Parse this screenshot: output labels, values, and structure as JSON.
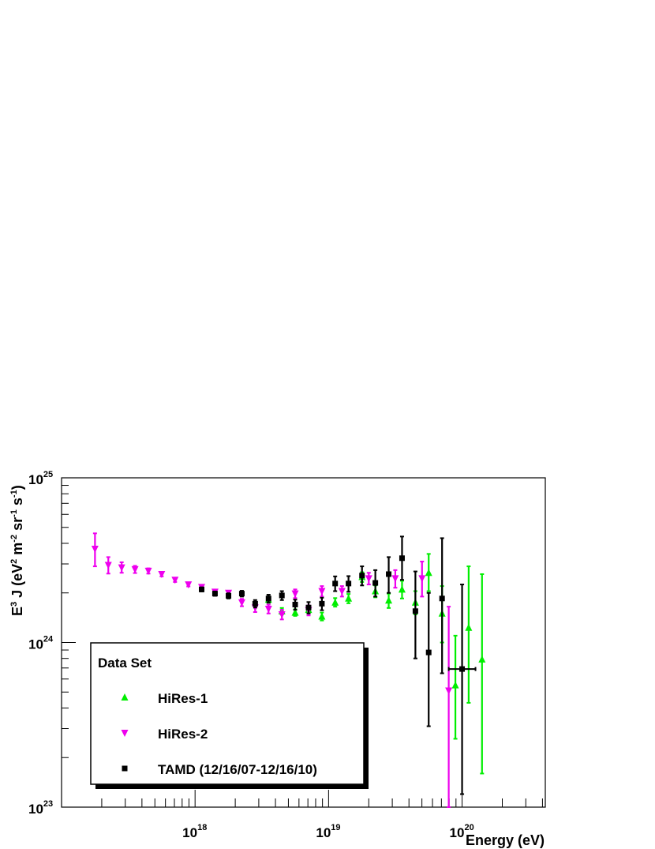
{
  "chart_data": {
    "type": "scatter",
    "xlabel": "Energy (eV)",
    "ylabel": "E³J (eV² m⁻² sr⁻¹ s⁻¹)",
    "ylabel_parts": {
      "a": "E",
      "a_sup": "3",
      "b": " J (eV",
      "b_sup": "2",
      "c": " m",
      "c_sup": "-2",
      "d": " sr",
      "d_sup": "-1",
      "e": " s",
      "e_sup": "-1",
      "f": ")"
    },
    "x_scale": "log",
    "y_scale": "log",
    "xlim": [
      1e+17,
      4.2e+20
    ],
    "ylim": [
      1e+23,
      1e+25
    ],
    "x_ticks": [
      {
        "base": "10",
        "exp": "18",
        "value": 1e+18
      },
      {
        "base": "10",
        "exp": "19",
        "value": 1e+19
      },
      {
        "base": "10",
        "exp": "20",
        "value": 1e+20
      }
    ],
    "y_ticks": [
      {
        "base": "10",
        "exp": "23",
        "value": 1e+23
      },
      {
        "base": "10",
        "exp": "24",
        "value": 1e+24
      },
      {
        "base": "10",
        "exp": "25",
        "value": 1e+25
      }
    ],
    "grid": false,
    "legend": {
      "title": "Data Set",
      "position": "bottom-left"
    },
    "series": [
      {
        "name": "HiRes-1",
        "color": "#00ee00",
        "marker": "triangle-up",
        "points": [
          {
            "x": 3.55e+18,
            "y": 1.82e+24,
            "lo": 1.74e+24,
            "hi": 1.9e+24
          },
          {
            "x": 4.47e+18,
            "y": 1.55e+24,
            "lo": 1.48e+24,
            "hi": 1.62e+24
          },
          {
            "x": 5.62e+18,
            "y": 1.52e+24,
            "lo": 1.45e+24,
            "hi": 1.59e+24
          },
          {
            "x": 7.08e+18,
            "y": 1.58e+24,
            "lo": 1.5e+24,
            "hi": 1.66e+24
          },
          {
            "x": 8.91e+18,
            "y": 1.44e+24,
            "lo": 1.36e+24,
            "hi": 1.52e+24
          },
          {
            "x": 1.12e+19,
            "y": 1.75e+24,
            "lo": 1.65e+24,
            "hi": 1.86e+24
          },
          {
            "x": 1.41e+19,
            "y": 1.85e+24,
            "lo": 1.73e+24,
            "hi": 1.97e+24
          },
          {
            "x": 1.78e+19,
            "y": 2.5e+24,
            "lo": 2.33e+24,
            "hi": 2.67e+24
          },
          {
            "x": 2.24e+19,
            "y": 2.05e+24,
            "lo": 1.88e+24,
            "hi": 2.22e+24
          },
          {
            "x": 2.82e+19,
            "y": 1.8e+24,
            "lo": 1.62e+24,
            "hi": 1.98e+24
          },
          {
            "x": 3.55e+19,
            "y": 2.1e+24,
            "lo": 1.85e+24,
            "hi": 2.37e+24
          },
          {
            "x": 4.47e+19,
            "y": 1.75e+24,
            "lo": 1.48e+24,
            "hi": 2.05e+24
          },
          {
            "x": 5.62e+19,
            "y": 2.65e+24,
            "lo": 2.05e+24,
            "hi": 3.45e+24
          },
          {
            "x": 7.08e+19,
            "y": 1.5e+24,
            "lo": 1e+24,
            "hi": 2.2e+24
          },
          {
            "x": 8.91e+19,
            "y": 5.5e+23,
            "lo": 2.6e+23,
            "hi": 1.1e+24
          },
          {
            "x": 1.12e+20,
            "y": 1.23e+24,
            "lo": 4.3e+23,
            "hi": 2.9e+24
          },
          {
            "x": 1.41e+20,
            "y": 7.9e+23,
            "lo": 1.6e+23,
            "hi": 2.6e+24
          }
        ]
      },
      {
        "name": "HiRes-2",
        "color": "#ee00ee",
        "marker": "triangle-down",
        "points": [
          {
            "x": 1.78e+17,
            "y": 3.7e+24,
            "lo": 2.9e+24,
            "hi": 4.6e+24
          },
          {
            "x": 2.24e+17,
            "y": 2.95e+24,
            "lo": 2.62e+24,
            "hi": 3.3e+24
          },
          {
            "x": 2.82e+17,
            "y": 2.85e+24,
            "lo": 2.65e+24,
            "hi": 3.07e+24
          },
          {
            "x": 3.55e+17,
            "y": 2.78e+24,
            "lo": 2.64e+24,
            "hi": 2.92e+24
          },
          {
            "x": 4.47e+17,
            "y": 2.72e+24,
            "lo": 2.62e+24,
            "hi": 2.82e+24
          },
          {
            "x": 5.62e+17,
            "y": 2.6e+24,
            "lo": 2.52e+24,
            "hi": 2.68e+24
          },
          {
            "x": 7.08e+17,
            "y": 2.4e+24,
            "lo": 2.33e+24,
            "hi": 2.47e+24
          },
          {
            "x": 8.91e+17,
            "y": 2.25e+24,
            "lo": 2.19e+24,
            "hi": 2.31e+24
          },
          {
            "x": 1.12e+18,
            "y": 2.17e+24,
            "lo": 2.11e+24,
            "hi": 2.23e+24
          },
          {
            "x": 1.41e+18,
            "y": 2.03e+24,
            "lo": 1.97e+24,
            "hi": 2.09e+24
          },
          {
            "x": 1.78e+18,
            "y": 2e+24,
            "lo": 1.94e+24,
            "hi": 2.06e+24
          },
          {
            "x": 2.24e+18,
            "y": 1.75e+24,
            "lo": 1.66e+24,
            "hi": 1.84e+24
          },
          {
            "x": 2.82e+18,
            "y": 1.63e+24,
            "lo": 1.53e+24,
            "hi": 1.73e+24
          },
          {
            "x": 3.55e+18,
            "y": 1.6e+24,
            "lo": 1.5e+24,
            "hi": 1.7e+24
          },
          {
            "x": 4.47e+18,
            "y": 1.48e+24,
            "lo": 1.38e+24,
            "hi": 1.58e+24
          },
          {
            "x": 5.62e+18,
            "y": 1.98e+24,
            "lo": 1.86e+24,
            "hi": 2.1e+24
          },
          {
            "x": 7.08e+18,
            "y": 1.57e+24,
            "lo": 1.46e+24,
            "hi": 1.68e+24
          },
          {
            "x": 8.91e+18,
            "y": 2.05e+24,
            "lo": 1.9e+24,
            "hi": 2.2e+24
          },
          {
            "x": 1.26e+19,
            "y": 2.05e+24,
            "lo": 1.9e+24,
            "hi": 2.2e+24
          },
          {
            "x": 2e+19,
            "y": 2.45e+24,
            "lo": 2.25e+24,
            "hi": 2.65e+24
          },
          {
            "x": 3.16e+19,
            "y": 2.45e+24,
            "lo": 2.15e+24,
            "hi": 2.75e+24
          },
          {
            "x": 5.01e+19,
            "y": 2.45e+24,
            "lo": 1.9e+24,
            "hi": 3.1e+24
          },
          {
            "x": 7.94e+19,
            "y": 5.1e+23,
            "lo": 1e+23,
            "hi": 1.65e+24
          }
        ]
      },
      {
        "name": "TAMD (12/16/07-12/16/10)",
        "color": "#000000",
        "marker": "square",
        "points": [
          {
            "x": 1.12e+18,
            "y": 2.1e+24,
            "lo": 2.04e+24,
            "hi": 2.16e+24
          },
          {
            "x": 1.41e+18,
            "y": 1.98e+24,
            "lo": 1.92e+24,
            "hi": 2.04e+24
          },
          {
            "x": 1.78e+18,
            "y": 1.92e+24,
            "lo": 1.85e+24,
            "hi": 1.99e+24
          },
          {
            "x": 2.24e+18,
            "y": 1.98e+24,
            "lo": 1.9e+24,
            "hi": 2.06e+24
          },
          {
            "x": 2.82e+18,
            "y": 1.72e+24,
            "lo": 1.63e+24,
            "hi": 1.81e+24
          },
          {
            "x": 3.55e+18,
            "y": 1.85e+24,
            "lo": 1.75e+24,
            "hi": 1.95e+24
          },
          {
            "x": 4.47e+18,
            "y": 1.93e+24,
            "lo": 1.81e+24,
            "hi": 2.05e+24
          },
          {
            "x": 5.62e+18,
            "y": 1.7e+24,
            "lo": 1.58e+24,
            "hi": 1.82e+24
          },
          {
            "x": 7.08e+18,
            "y": 1.63e+24,
            "lo": 1.5e+24,
            "hi": 1.76e+24
          },
          {
            "x": 8.91e+18,
            "y": 1.72e+24,
            "lo": 1.57e+24,
            "hi": 1.87e+24
          },
          {
            "x": 1.12e+19,
            "y": 2.28e+24,
            "lo": 2.05e+24,
            "hi": 2.52e+24
          },
          {
            "x": 1.41e+19,
            "y": 2.28e+24,
            "lo": 2.03e+24,
            "hi": 2.53e+24
          },
          {
            "x": 1.78e+19,
            "y": 2.55e+24,
            "lo": 2.22e+24,
            "hi": 2.9e+24
          },
          {
            "x": 2.24e+19,
            "y": 2.3e+24,
            "lo": 1.9e+24,
            "hi": 2.75e+24
          },
          {
            "x": 2.82e+19,
            "y": 2.6e+24,
            "lo": 2e+24,
            "hi": 3.3e+24
          },
          {
            "x": 3.55e+19,
            "y": 3.25e+24,
            "lo": 2.4e+24,
            "hi": 4.4e+24
          },
          {
            "x": 4.47e+19,
            "y": 1.55e+24,
            "lo": 8e+23,
            "hi": 2.7e+24
          },
          {
            "x": 5.62e+19,
            "y": 8.7e+23,
            "lo": 3.1e+23,
            "hi": 2e+24
          },
          {
            "x": 7.08e+19,
            "y": 1.85e+24,
            "lo": 6.5e+23,
            "hi": 4.3e+24
          },
          {
            "x": 1e+20,
            "y": 6.9e+23,
            "lo": 1.2e+23,
            "hi": 2.25e+24,
            "xlo": 7.94e+19,
            "xhi": 1.26e+20
          }
        ]
      }
    ]
  }
}
